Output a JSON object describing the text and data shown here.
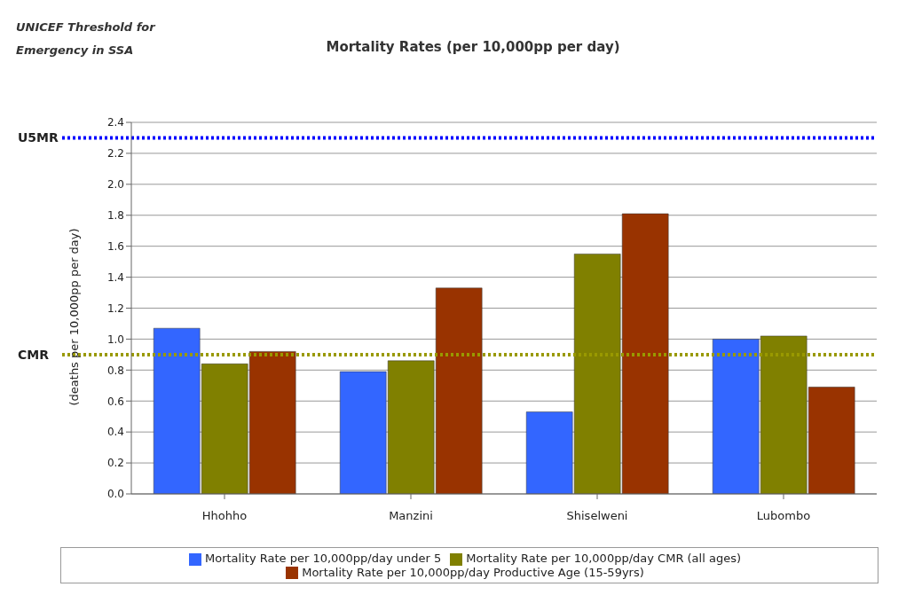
{
  "chart_data": {
    "type": "bar",
    "title": "Mortality Rates (per 10,000pp per day)",
    "ylabel": "(deaths per 10,000pp per day)",
    "annotations": [
      "UNICEF Threshold for Emergency in SSA"
    ],
    "categories": [
      "Hhohho",
      "Manzini",
      "Shiselweni",
      "Lubombo"
    ],
    "series": [
      {
        "name": "Mortality Rate per 10,000pp/day under 5",
        "color": "#3366ff",
        "values": [
          1.07,
          0.79,
          0.53,
          1.0
        ]
      },
      {
        "name": "Mortality Rate per 10,000pp/day CMR (all ages)",
        "color": "#808000",
        "values": [
          0.84,
          0.86,
          1.55,
          1.02
        ]
      },
      {
        "name": "Mortality Rate per 10,000pp/day Productive Age (15-59yrs)",
        "color": "#993300",
        "values": [
          0.92,
          1.33,
          1.81,
          0.69
        ]
      }
    ],
    "ylim": [
      0,
      2.4
    ],
    "yticks": [
      {
        "value": 0,
        "label": "0.0"
      },
      {
        "value": 0.2,
        "label": "0.2"
      },
      {
        "value": 0.4,
        "label": "0.4"
      },
      {
        "value": 0.6,
        "label": "0.6"
      },
      {
        "value": 0.8,
        "label": "0.8"
      },
      {
        "value": 1,
        "label": "1.0"
      },
      {
        "value": 1.2,
        "label": "1.2"
      },
      {
        "value": 1.4,
        "label": "1.4"
      },
      {
        "value": 1.6,
        "label": "1.6"
      },
      {
        "value": 1.8,
        "label": "1.8"
      },
      {
        "value": 2,
        "label": "2.0"
      },
      {
        "value": 2.2,
        "label": "2.2"
      },
      {
        "value": 2.4,
        "label": "2.4"
      }
    ],
    "ref_lines": [
      {
        "axis": "y",
        "value": 2.3,
        "label": "U5MR",
        "color": "#0000ff",
        "line_style": "dotted"
      },
      {
        "axis": "y",
        "value": 0.9,
        "label": "CMR",
        "color": "#999900",
        "line_style": "dotted"
      }
    ],
    "grid": "y",
    "legend": "bottom"
  }
}
